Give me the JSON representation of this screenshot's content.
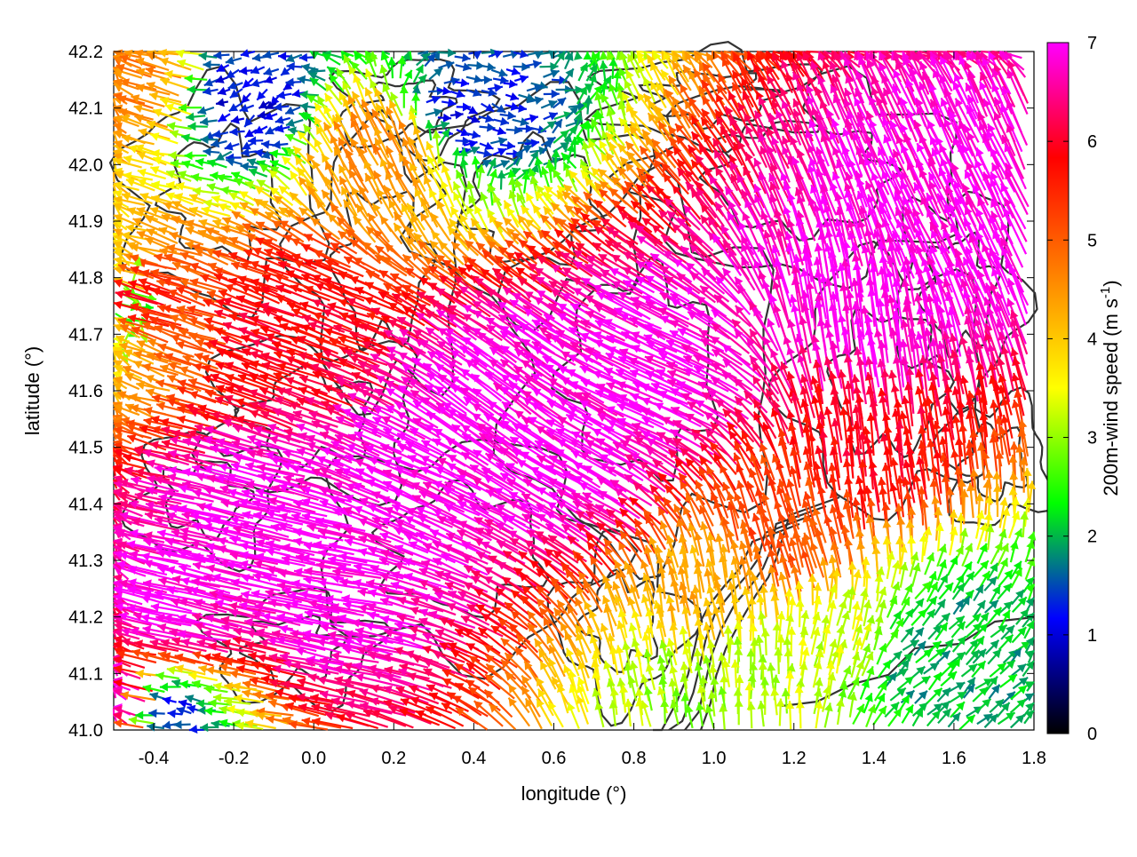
{
  "chart_data": {
    "type": "vector-field",
    "xlabel": "longitude (°)",
    "ylabel": "latitude (°)",
    "xlim": [
      -0.5,
      1.8
    ],
    "ylim": [
      41.0,
      42.2
    ],
    "xticks": [
      "-0.4",
      "-0.2",
      "0.0",
      "0.2",
      "0.4",
      "0.6",
      "0.8",
      "1.0",
      "1.2",
      "1.4",
      "1.6",
      "1.8"
    ],
    "xtick_values": [
      -0.4,
      -0.2,
      0.0,
      0.2,
      0.4,
      0.6,
      0.8,
      1.0,
      1.2,
      1.4,
      1.6,
      1.8
    ],
    "yticks": [
      "41.0",
      "41.1",
      "41.2",
      "41.3",
      "41.4",
      "41.5",
      "41.6",
      "41.7",
      "41.8",
      "41.9",
      "42.0",
      "42.1",
      "42.2"
    ],
    "ytick_values": [
      41.0,
      41.1,
      41.2,
      41.3,
      41.4,
      41.5,
      41.6,
      41.7,
      41.8,
      41.9,
      42.0,
      42.1,
      42.2
    ],
    "colorbar": {
      "label_main": "200m-wind speed (m s",
      "label_sup": "-1",
      "label_close": ")",
      "range": [
        0,
        7
      ],
      "ticks": [
        "0",
        "1",
        "2",
        "3",
        "4",
        "5",
        "6",
        "7"
      ],
      "tick_values": [
        0,
        1,
        2,
        3,
        4,
        5,
        6,
        7
      ],
      "palette": [
        "#000000",
        "#0000ff",
        "#00ff00",
        "#ffff00",
        "#ff8000",
        "#ff0000",
        "#ff00ff"
      ]
    },
    "vectors": [
      {
        "lon": -0.45,
        "lat": 41.05,
        "u": -6.8,
        "v": 1.2,
        "speed": 7.0
      },
      {
        "lon": -0.3,
        "lat": 41.2,
        "u": -6.7,
        "v": 1.5,
        "speed": 7.0
      },
      {
        "lon": -0.1,
        "lat": 41.35,
        "u": -6.6,
        "v": 1.7,
        "speed": 7.0
      },
      {
        "lon": 0.1,
        "lat": 41.25,
        "u": -6.8,
        "v": 1.3,
        "speed": 7.0
      },
      {
        "lon": 0.3,
        "lat": 41.4,
        "u": -6.2,
        "v": 2.8,
        "speed": 7.0
      },
      {
        "lon": 0.5,
        "lat": 41.55,
        "u": -5.5,
        "v": 4.0,
        "speed": 7.0
      },
      {
        "lon": 0.7,
        "lat": 41.45,
        "u": -6.0,
        "v": 3.5,
        "speed": 7.0
      },
      {
        "lon": 0.9,
        "lat": 41.6,
        "u": -6.3,
        "v": 2.9,
        "speed": 7.0
      },
      {
        "lon": 1.4,
        "lat": 41.7,
        "u": -1.0,
        "v": 6.9,
        "speed": 7.0
      },
      {
        "lon": 1.6,
        "lat": 41.85,
        "u": -3.0,
        "v": 6.3,
        "speed": 7.0
      },
      {
        "lon": -0.4,
        "lat": 41.75,
        "u": -5.8,
        "v": 1.8,
        "speed": 6.1
      },
      {
        "lon": 0.0,
        "lat": 41.7,
        "u": -5.5,
        "v": 2.0,
        "speed": 5.9
      },
      {
        "lon": 1.2,
        "lat": 41.3,
        "u": -1.5,
        "v": 5.0,
        "speed": 5.2
      },
      {
        "lon": 1.4,
        "lat": 41.45,
        "u": -0.8,
        "v": 5.8,
        "speed": 5.9
      },
      {
        "lon": 1.0,
        "lat": 41.2,
        "u": -0.8,
        "v": 4.2,
        "speed": 4.3
      },
      {
        "lon": -0.4,
        "lat": 42.15,
        "u": -4.5,
        "v": 1.5,
        "speed": 4.7
      },
      {
        "lon": 0.2,
        "lat": 42.0,
        "u": -2.0,
        "v": 4.0,
        "speed": 4.5
      },
      {
        "lon": 1.1,
        "lat": 41.1,
        "u": 0.0,
        "v": 3.2,
        "speed": 3.2
      },
      {
        "lon": 0.95,
        "lat": 41.05,
        "u": -0.5,
        "v": 3.0,
        "speed": 3.0
      },
      {
        "lon": 1.3,
        "lat": 41.15,
        "u": 0.8,
        "v": 3.2,
        "speed": 3.3
      },
      {
        "lon": 1.5,
        "lat": 41.1,
        "u": 1.4,
        "v": 1.4,
        "speed": 2.0
      },
      {
        "lon": 1.7,
        "lat": 41.05,
        "u": 1.5,
        "v": 1.3,
        "speed": 2.0
      },
      {
        "lon": 1.6,
        "lat": 41.15,
        "u": 1.3,
        "v": 1.5,
        "speed": 2.0
      },
      {
        "lon": -0.35,
        "lat": 41.03,
        "u": -1.2,
        "v": 0.1,
        "speed": 1.2
      },
      {
        "lon": 0.37,
        "lat": 42.08,
        "u": 1.2,
        "v": -0.2,
        "speed": 1.2
      },
      {
        "lon": -0.16,
        "lat": 42.12,
        "u": -1.0,
        "v": -0.5,
        "speed": 1.1
      },
      {
        "lon": -0.45,
        "lat": 41.75,
        "u": 2.0,
        "v": -0.5,
        "speed": 2.1
      }
    ]
  }
}
